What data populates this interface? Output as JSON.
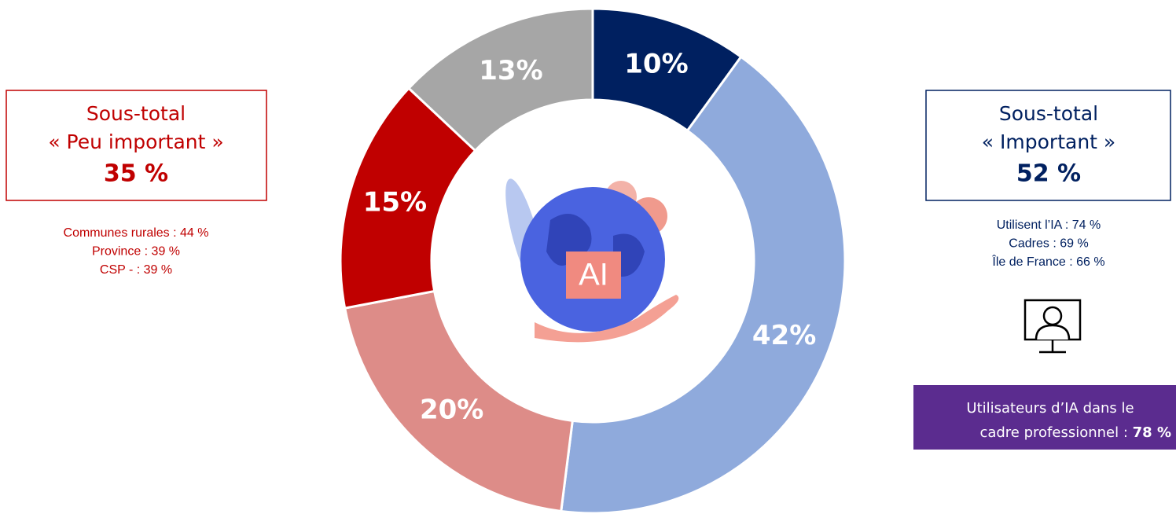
{
  "chart_data": {
    "type": "pie",
    "values": [
      10,
      42,
      20,
      15,
      13
    ],
    "value_labels": [
      "10%",
      "42%",
      "20%",
      "15%",
      "13%"
    ],
    "colors": [
      "#002060",
      "#8faadc",
      "#dd8c88",
      "#c00000",
      "#a6a6a6"
    ],
    "center_icon_text": "AI",
    "left_panel": {
      "lines": [
        "Sous-total",
        "« Peu important »"
      ],
      "total": "35 %",
      "color": "#c00000",
      "details": [
        "Communes rurales : 44 %",
        "Province : 39 %",
        "CSP - : 39 %"
      ]
    },
    "right_panel": {
      "lines": [
        "Sous-total",
        "« Important »"
      ],
      "total": "52 %",
      "color": "#002060",
      "details": [
        "Utilisent l’IA : 74 %",
        "Cadres : 69 %",
        "Île de France : 66 %"
      ],
      "callout": {
        "lines": [
          "Utilisateurs d’IA dans le",
          "cadre professionnel : "
        ],
        "highlight": "78 %",
        "color": "#5b2c8f"
      }
    }
  }
}
